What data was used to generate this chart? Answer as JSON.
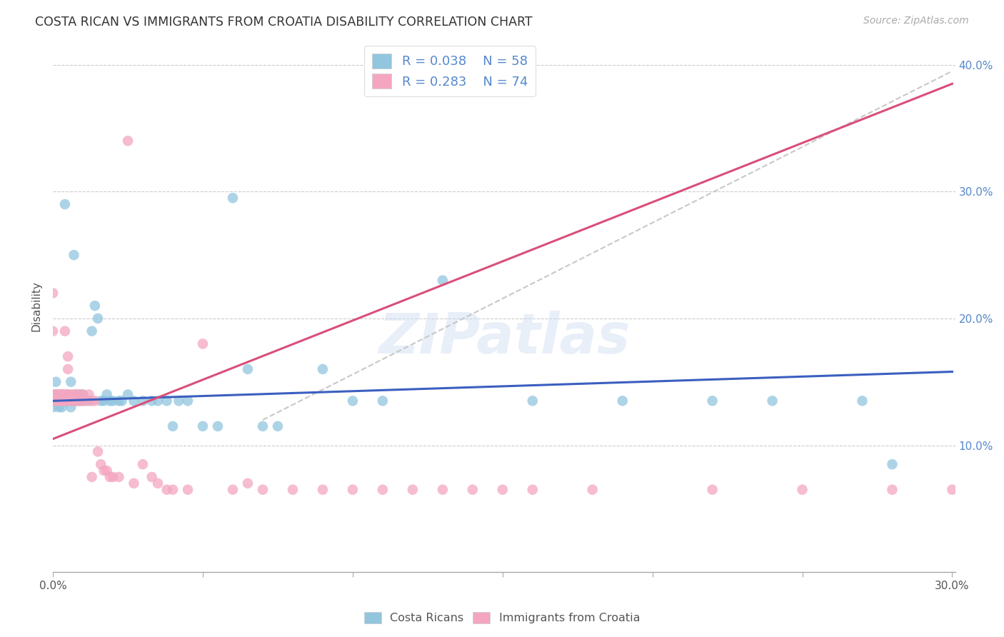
{
  "title": "COSTA RICAN VS IMMIGRANTS FROM CROATIA DISABILITY CORRELATION CHART",
  "source": "Source: ZipAtlas.com",
  "ylabel": "Disability",
  "xlim": [
    0.0,
    0.3
  ],
  "ylim": [
    0.0,
    0.42
  ],
  "watermark": "ZIPatlas",
  "legend_cr_R": "0.038",
  "legend_cr_N": "58",
  "legend_imm_R": "0.283",
  "legend_imm_N": "74",
  "blue_color": "#92c5de",
  "pink_color": "#f4a6c0",
  "trendline_blue": "#3b5fc0",
  "trendline_pink": "#d94f7a",
  "trendline_dashed_color": "#c8c8c8",
  "blue_trend_x0": 0.0,
  "blue_trend_y0": 0.135,
  "blue_trend_x1": 0.3,
  "blue_trend_y1": 0.158,
  "pink_trend_x0": 0.0,
  "pink_trend_y0": 0.105,
  "pink_trend_x1": 0.15,
  "pink_trend_y1": 0.245,
  "dash_trend_x0": 0.07,
  "dash_trend_y0": 0.12,
  "dash_trend_x1": 0.3,
  "dash_trend_y1": 0.395,
  "cr_x": [
    0.0,
    0.0,
    0.001,
    0.001,
    0.002,
    0.002,
    0.003,
    0.003,
    0.004,
    0.004,
    0.005,
    0.005,
    0.006,
    0.006,
    0.007,
    0.007,
    0.008,
    0.008,
    0.009,
    0.009,
    0.01,
    0.01,
    0.012,
    0.013,
    0.014,
    0.015,
    0.016,
    0.017,
    0.018,
    0.019,
    0.02,
    0.022,
    0.023,
    0.025,
    0.027,
    0.03,
    0.033,
    0.035,
    0.038,
    0.04,
    0.042,
    0.045,
    0.05,
    0.055,
    0.06,
    0.065,
    0.07,
    0.075,
    0.09,
    0.1,
    0.11,
    0.13,
    0.16,
    0.19,
    0.22,
    0.24,
    0.27,
    0.28
  ],
  "cr_y": [
    0.14,
    0.13,
    0.15,
    0.14,
    0.14,
    0.13,
    0.14,
    0.13,
    0.29,
    0.135,
    0.14,
    0.135,
    0.13,
    0.15,
    0.25,
    0.135,
    0.14,
    0.135,
    0.14,
    0.135,
    0.135,
    0.14,
    0.135,
    0.19,
    0.21,
    0.2,
    0.135,
    0.135,
    0.14,
    0.135,
    0.135,
    0.135,
    0.135,
    0.14,
    0.135,
    0.135,
    0.135,
    0.135,
    0.135,
    0.115,
    0.135,
    0.135,
    0.115,
    0.115,
    0.295,
    0.16,
    0.115,
    0.115,
    0.16,
    0.135,
    0.135,
    0.23,
    0.135,
    0.135,
    0.135,
    0.135,
    0.135,
    0.085
  ],
  "imm_x": [
    0.0,
    0.0,
    0.0,
    0.0,
    0.001,
    0.001,
    0.001,
    0.001,
    0.002,
    0.002,
    0.002,
    0.002,
    0.003,
    0.003,
    0.003,
    0.003,
    0.004,
    0.004,
    0.004,
    0.004,
    0.005,
    0.005,
    0.005,
    0.005,
    0.006,
    0.006,
    0.006,
    0.007,
    0.007,
    0.007,
    0.008,
    0.008,
    0.009,
    0.009,
    0.01,
    0.01,
    0.011,
    0.012,
    0.013,
    0.013,
    0.014,
    0.015,
    0.016,
    0.017,
    0.018,
    0.019,
    0.02,
    0.022,
    0.025,
    0.027,
    0.03,
    0.033,
    0.035,
    0.038,
    0.04,
    0.045,
    0.05,
    0.06,
    0.065,
    0.07,
    0.08,
    0.09,
    0.1,
    0.11,
    0.12,
    0.13,
    0.14,
    0.15,
    0.16,
    0.18,
    0.22,
    0.25,
    0.28,
    0.3
  ],
  "imm_y": [
    0.135,
    0.14,
    0.19,
    0.22,
    0.135,
    0.14,
    0.135,
    0.14,
    0.135,
    0.14,
    0.135,
    0.14,
    0.14,
    0.135,
    0.14,
    0.135,
    0.14,
    0.19,
    0.135,
    0.14,
    0.14,
    0.135,
    0.17,
    0.16,
    0.135,
    0.14,
    0.135,
    0.14,
    0.135,
    0.14,
    0.135,
    0.14,
    0.14,
    0.135,
    0.135,
    0.14,
    0.135,
    0.14,
    0.135,
    0.075,
    0.135,
    0.095,
    0.085,
    0.08,
    0.08,
    0.075,
    0.075,
    0.075,
    0.34,
    0.07,
    0.085,
    0.075,
    0.07,
    0.065,
    0.065,
    0.065,
    0.18,
    0.065,
    0.07,
    0.065,
    0.065,
    0.065,
    0.065,
    0.065,
    0.065,
    0.065,
    0.065,
    0.065,
    0.065,
    0.065,
    0.065,
    0.065,
    0.065,
    0.065
  ]
}
